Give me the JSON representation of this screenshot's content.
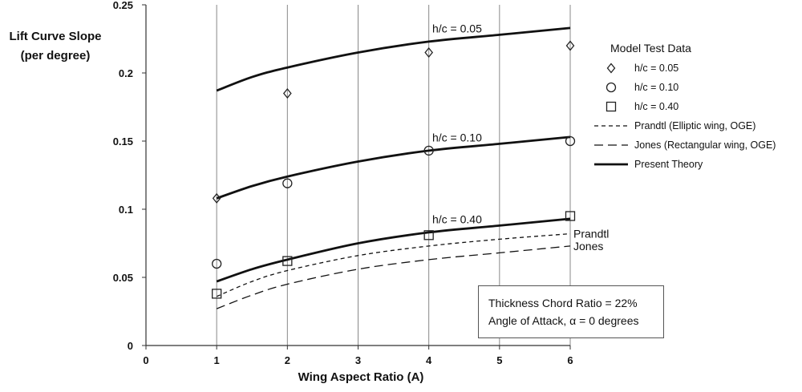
{
  "chart_data": {
    "type": "line",
    "xlabel": "Wing Aspect Ratio (A)",
    "ylabel": "Lift Curve Slope (per degree)",
    "xlim": [
      0,
      6
    ],
    "ylim": [
      0,
      0.25
    ],
    "x_ticks": [
      "0",
      "1",
      "2",
      "3",
      "4",
      "5",
      "6"
    ],
    "y_ticks": [
      "0",
      "0.05",
      "0.1",
      "0.15",
      "0.2",
      "0.25"
    ],
    "grid": "vertical",
    "legend_placement": "right",
    "lines": [
      {
        "name": "Present Theory",
        "label": "h/c = 0.05",
        "style": "solid",
        "x": [
          1,
          1.5,
          2,
          3,
          4,
          5,
          6
        ],
        "y": [
          0.187,
          0.197,
          0.204,
          0.215,
          0.223,
          0.228,
          0.233
        ]
      },
      {
        "name": "Present Theory",
        "label": "h/c = 0.10",
        "style": "solid",
        "x": [
          1,
          1.5,
          2,
          3,
          4,
          5,
          6
        ],
        "y": [
          0.108,
          0.117,
          0.124,
          0.135,
          0.143,
          0.148,
          0.153
        ]
      },
      {
        "name": "Present Theory",
        "label": "h/c = 0.40",
        "style": "solid",
        "x": [
          1,
          1.5,
          2,
          3,
          4,
          5,
          6
        ],
        "y": [
          0.047,
          0.056,
          0.063,
          0.075,
          0.083,
          0.088,
          0.093
        ]
      },
      {
        "name": "Prandtl (Elliptic wing, OGE)",
        "label": "Prandtl",
        "style": "short-dash",
        "x": [
          1,
          1.5,
          2,
          3,
          4,
          5,
          6
        ],
        "y": [
          0.036,
          0.047,
          0.055,
          0.066,
          0.073,
          0.078,
          0.082
        ]
      },
      {
        "name": "Jones (Rectangular wing, OGE)",
        "label": "Jones",
        "style": "long-dash",
        "x": [
          1,
          1.5,
          2,
          3,
          4,
          5,
          6
        ],
        "y": [
          0.027,
          0.037,
          0.045,
          0.056,
          0.063,
          0.068,
          0.073
        ]
      }
    ],
    "markers": [
      {
        "name": "h/c = 0.05",
        "symbol": "diamond",
        "x": [
          1,
          2,
          4,
          6
        ],
        "y": [
          0.108,
          0.185,
          0.215,
          0.22
        ]
      },
      {
        "name": "h/c = 0.10",
        "symbol": "circle",
        "x": [
          1,
          2,
          4,
          6
        ],
        "y": [
          0.06,
          0.119,
          0.143,
          0.15
        ]
      },
      {
        "name": "h/c = 0.40",
        "symbol": "square",
        "x": [
          1,
          2,
          4,
          6
        ],
        "y": [
          0.038,
          0.062,
          0.081,
          0.095
        ]
      }
    ]
  },
  "y_label_line1": "Lift Curve Slope",
  "y_label_line2": "(per degree)",
  "legend": {
    "title": "Model Test Data",
    "items": [
      {
        "symbol": "diamond",
        "label": "h/c = 0.05"
      },
      {
        "symbol": "circle",
        "label": "h/c = 0.10"
      },
      {
        "symbol": "square",
        "label": "h/c = 0.40"
      },
      {
        "symbol": "short-dash",
        "label": "Prandtl (Elliptic wing, OGE)"
      },
      {
        "symbol": "long-dash",
        "label": "Jones (Rectangular wing, OGE)"
      },
      {
        "symbol": "solid",
        "label": "Present Theory"
      }
    ]
  },
  "note": {
    "line1": "Thickness Chord Ratio = 22%",
    "line2": "Angle of Attack, α = 0 degrees"
  }
}
